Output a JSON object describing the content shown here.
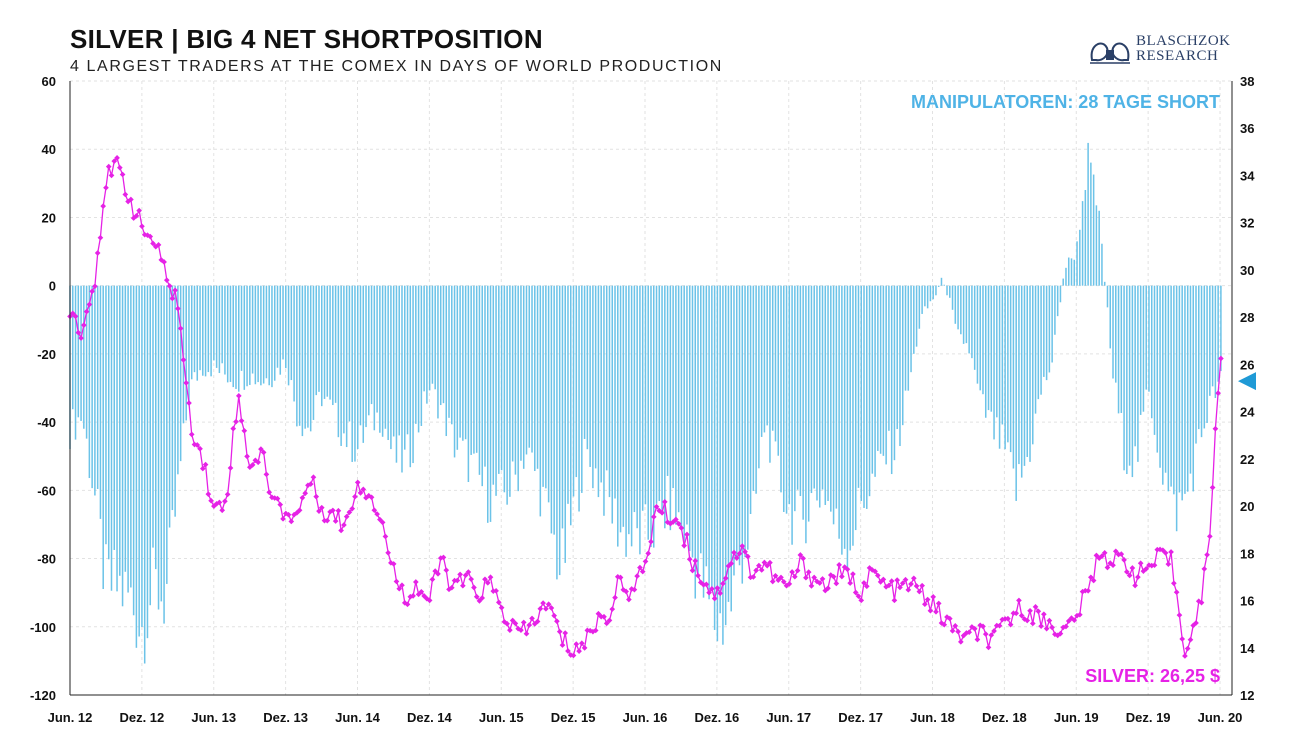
{
  "header": {
    "title": "SILVER | BIG 4 NET SHORTPOSITION",
    "subtitle": "4 LARGEST TRADERS AT THE COMEX IN DAYS OF WORLD PRODUCTION"
  },
  "logo": {
    "line1": "BLASCHZOK",
    "line2": "RESEARCH"
  },
  "chart_data": {
    "type": "bar+line",
    "x_tick_labels": [
      "Jun. 12",
      "Dez. 12",
      "Jun. 13",
      "Dez. 13",
      "Jun. 14",
      "Dez. 14",
      "Jun. 15",
      "Dez. 15",
      "Jun. 16",
      "Dez. 16",
      "Jun. 17",
      "Dez. 17",
      "Jun. 18",
      "Dez. 18",
      "Jun. 19",
      "Dez. 19",
      "Jun. 20"
    ],
    "x_range": [
      "2012-06",
      "2020-07"
    ],
    "y_left": {
      "ticks": [
        60,
        40,
        20,
        0,
        -20,
        -40,
        -60,
        -80,
        -100,
        -120
      ],
      "ylim": [
        -120,
        60
      ]
    },
    "y_right": {
      "ticks": [
        38,
        36,
        34,
        32,
        30,
        28,
        26,
        24,
        22,
        20,
        18,
        16,
        14,
        12
      ],
      "ylim": [
        12,
        38
      ]
    },
    "grid": "dashed vertical and horizontal",
    "annotations": {
      "bars_label": "MANIPULATOREN: 28 TAGE SHORT",
      "line_label": "SILVER: 26,25 $"
    },
    "colors": {
      "bars": "#6cc3e8",
      "line": "#e622e6",
      "marker": "#1f9ad6"
    },
    "series": [
      {
        "axis": "left",
        "style": "bars",
        "points": [
          [
            "2012-06",
            -42
          ],
          [
            "2012-07",
            -38
          ],
          [
            "2012-08",
            -60
          ],
          [
            "2012-09",
            -88
          ],
          [
            "2012-10",
            -88
          ],
          [
            "2012-11",
            -92
          ],
          [
            "2012-12",
            -100
          ],
          [
            "2013-01",
            -88
          ],
          [
            "2013-02",
            -92
          ],
          [
            "2013-03",
            -60
          ],
          [
            "2013-04",
            -30
          ],
          [
            "2013-05",
            -24
          ],
          [
            "2013-06",
            -24
          ],
          [
            "2013-07",
            -26
          ],
          [
            "2013-08",
            -28
          ],
          [
            "2013-09",
            -26
          ],
          [
            "2013-10",
            -28
          ],
          [
            "2013-11",
            -26
          ],
          [
            "2013-12",
            -22
          ],
          [
            "2014-01",
            -38
          ],
          [
            "2014-02",
            -42
          ],
          [
            "2014-03",
            -32
          ],
          [
            "2014-04",
            -38
          ],
          [
            "2014-05",
            -44
          ],
          [
            "2014-06",
            -48
          ],
          [
            "2014-07",
            -40
          ],
          [
            "2014-08",
            -38
          ],
          [
            "2014-09",
            -50
          ],
          [
            "2014-10",
            -52
          ],
          [
            "2014-11",
            -42
          ],
          [
            "2014-12",
            -30
          ],
          [
            "2015-01",
            -36
          ],
          [
            "2015-02",
            -46
          ],
          [
            "2015-03",
            -50
          ],
          [
            "2015-04",
            -56
          ],
          [
            "2015-05",
            -62
          ],
          [
            "2015-06",
            -62
          ],
          [
            "2015-07",
            -58
          ],
          [
            "2015-08",
            -48
          ],
          [
            "2015-09",
            -56
          ],
          [
            "2015-10",
            -70
          ],
          [
            "2015-11",
            -84
          ],
          [
            "2015-12",
            -66
          ],
          [
            "2016-01",
            -50
          ],
          [
            "2016-02",
            -56
          ],
          [
            "2016-03",
            -64
          ],
          [
            "2016-04",
            -72
          ],
          [
            "2016-05",
            -74
          ],
          [
            "2016-06",
            -74
          ],
          [
            "2016-07",
            -70
          ],
          [
            "2016-08",
            -64
          ],
          [
            "2016-09",
            -70
          ],
          [
            "2016-10",
            -80
          ],
          [
            "2016-11",
            -90
          ],
          [
            "2016-12",
            -100
          ],
          [
            "2017-01",
            -96
          ],
          [
            "2017-02",
            -80
          ],
          [
            "2017-03",
            -70
          ],
          [
            "2017-04",
            -40
          ],
          [
            "2017-05",
            -54
          ],
          [
            "2017-06",
            -66
          ],
          [
            "2017-07",
            -70
          ],
          [
            "2017-08",
            -62
          ],
          [
            "2017-09",
            -60
          ],
          [
            "2017-10",
            -72
          ],
          [
            "2017-11",
            -76
          ],
          [
            "2017-12",
            -64
          ],
          [
            "2018-01",
            -58
          ],
          [
            "2018-02",
            -50
          ],
          [
            "2018-03",
            -48
          ],
          [
            "2018-04",
            -30
          ],
          [
            "2018-05",
            -10
          ],
          [
            "2018-06",
            -4
          ],
          [
            "2018-07",
            2
          ],
          [
            "2018-08",
            -14
          ],
          [
            "2018-09",
            -18
          ],
          [
            "2018-10",
            -34
          ],
          [
            "2018-11",
            -42
          ],
          [
            "2018-12",
            -48
          ],
          [
            "2019-01",
            -60
          ],
          [
            "2019-02",
            -50
          ],
          [
            "2019-03",
            -32
          ],
          [
            "2019-04",
            -22
          ],
          [
            "2019-05",
            5
          ],
          [
            "2019-06",
            10
          ],
          [
            "2019-07",
            38
          ],
          [
            "2019-08",
            18
          ],
          [
            "2019-09",
            -25
          ],
          [
            "2019-10",
            -48
          ],
          [
            "2019-11",
            -52
          ],
          [
            "2019-12",
            -30
          ],
          [
            "2020-01",
            -50
          ],
          [
            "2020-02",
            -66
          ],
          [
            "2020-03",
            -64
          ],
          [
            "2020-04",
            -50
          ],
          [
            "2020-05",
            -36
          ],
          [
            "2020-06",
            -28
          ]
        ]
      },
      {
        "axis": "right",
        "style": "line",
        "points": [
          [
            "2012-06",
            28.4
          ],
          [
            "2012-07",
            27.4
          ],
          [
            "2012-08",
            29.4
          ],
          [
            "2012-09",
            33.8
          ],
          [
            "2012-10",
            34.4
          ],
          [
            "2012-11",
            33.0
          ],
          [
            "2012-12",
            31.8
          ],
          [
            "2013-01",
            31.2
          ],
          [
            "2013-02",
            29.8
          ],
          [
            "2013-03",
            28.6
          ],
          [
            "2013-04",
            23.6
          ],
          [
            "2013-05",
            22.2
          ],
          [
            "2013-06",
            19.8
          ],
          [
            "2013-07",
            20.2
          ],
          [
            "2013-08",
            24.6
          ],
          [
            "2013-09",
            21.8
          ],
          [
            "2013-10",
            22.2
          ],
          [
            "2013-11",
            20.2
          ],
          [
            "2013-12",
            19.7
          ],
          [
            "2014-01",
            19.6
          ],
          [
            "2014-02",
            21.2
          ],
          [
            "2014-03",
            19.9
          ],
          [
            "2014-04",
            19.6
          ],
          [
            "2014-05",
            19.2
          ],
          [
            "2014-06",
            21.0
          ],
          [
            "2014-07",
            20.6
          ],
          [
            "2014-08",
            19.4
          ],
          [
            "2014-09",
            17.2
          ],
          [
            "2014-10",
            16.2
          ],
          [
            "2014-11",
            16.6
          ],
          [
            "2014-12",
            16.0
          ],
          [
            "2015-01",
            17.8
          ],
          [
            "2015-02",
            16.4
          ],
          [
            "2015-03",
            17.0
          ],
          [
            "2015-04",
            16.2
          ],
          [
            "2015-05",
            16.8
          ],
          [
            "2015-06",
            15.6
          ],
          [
            "2015-07",
            14.8
          ],
          [
            "2015-08",
            14.6
          ],
          [
            "2015-09",
            15.4
          ],
          [
            "2015-10",
            15.8
          ],
          [
            "2015-11",
            14.4
          ],
          [
            "2015-12",
            13.9
          ],
          [
            "2016-01",
            14.2
          ],
          [
            "2016-02",
            15.2
          ],
          [
            "2016-03",
            15.4
          ],
          [
            "2016-04",
            17.0
          ],
          [
            "2016-05",
            16.2
          ],
          [
            "2016-06",
            17.6
          ],
          [
            "2016-07",
            20.0
          ],
          [
            "2016-08",
            19.6
          ],
          [
            "2016-09",
            19.2
          ],
          [
            "2016-10",
            17.6
          ],
          [
            "2016-11",
            16.8
          ],
          [
            "2016-12",
            16.2
          ],
          [
            "2017-01",
            17.6
          ],
          [
            "2017-02",
            18.2
          ],
          [
            "2017-03",
            17.2
          ],
          [
            "2017-04",
            17.6
          ],
          [
            "2017-05",
            16.8
          ],
          [
            "2017-06",
            16.6
          ],
          [
            "2017-07",
            17.6
          ],
          [
            "2017-08",
            17.0
          ],
          [
            "2017-09",
            16.6
          ],
          [
            "2017-10",
            17.1
          ],
          [
            "2017-11",
            17.0
          ],
          [
            "2017-12",
            16.4
          ],
          [
            "2018-01",
            17.2
          ],
          [
            "2018-02",
            16.6
          ],
          [
            "2018-03",
            16.4
          ],
          [
            "2018-04",
            16.7
          ],
          [
            "2018-05",
            16.4
          ],
          [
            "2018-06",
            15.8
          ],
          [
            "2018-07",
            15.2
          ],
          [
            "2018-08",
            14.6
          ],
          [
            "2018-09",
            14.4
          ],
          [
            "2018-10",
            14.7
          ],
          [
            "2018-11",
            14.2
          ],
          [
            "2018-12",
            15.0
          ],
          [
            "2019-01",
            15.6
          ],
          [
            "2019-02",
            15.6
          ],
          [
            "2019-03",
            15.2
          ],
          [
            "2019-04",
            15.0
          ],
          [
            "2019-05",
            14.6
          ],
          [
            "2019-06",
            15.4
          ],
          [
            "2019-07",
            16.4
          ],
          [
            "2019-08",
            18.2
          ],
          [
            "2019-09",
            17.6
          ],
          [
            "2019-10",
            17.8
          ],
          [
            "2019-11",
            17.0
          ],
          [
            "2019-12",
            17.4
          ],
          [
            "2020-01",
            17.8
          ],
          [
            "2020-02",
            17.6
          ],
          [
            "2020-03",
            14.0
          ],
          [
            "2020-04",
            15.0
          ],
          [
            "2020-05",
            17.8
          ],
          [
            "2020-06",
            26.25
          ]
        ]
      }
    ]
  }
}
